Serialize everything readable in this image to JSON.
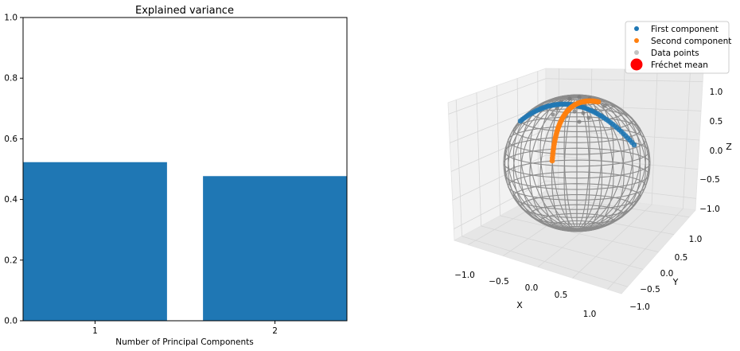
{
  "chart_data": [
    {
      "type": "bar",
      "title": "Explained variance",
      "xlabel": "Number of Principal Components",
      "ylabel": "",
      "categories": [
        "1",
        "2"
      ],
      "values": [
        0.523,
        0.477
      ],
      "ylim": [
        0,
        1
      ],
      "yticks": [
        "0.0",
        "0.2",
        "0.4",
        "0.6",
        "0.8",
        "1.0"
      ],
      "grid": false,
      "color": "#1f77b4"
    },
    {
      "type": "scatter3d",
      "title": "",
      "xlabel": "X",
      "ylabel": "Y",
      "zlabel": "Z",
      "xticks": [
        "−1.0",
        "−0.5",
        "0.0",
        "0.5",
        "1.0"
      ],
      "yticks": [
        "−1.0",
        "−0.5",
        "0.0",
        "0.5",
        "1.0"
      ],
      "zticks": [
        "−1.0",
        "−0.5",
        "0.0",
        "0.5",
        "1.0"
      ],
      "xlim": [
        -1.2,
        1.2
      ],
      "ylim": [
        -1.2,
        1.2
      ],
      "zlim": [
        -1.2,
        1.2
      ],
      "surface": "unit sphere wireframe",
      "legend_position": "top-right",
      "series": [
        {
          "name": "First component",
          "color": "#1f77b4",
          "marker": "point"
        },
        {
          "name": "Second component",
          "color": "#ff7f0e",
          "marker": "point"
        },
        {
          "name": "Data points",
          "color": "#bdbdbd",
          "marker": "point"
        },
        {
          "name": "Fréchet mean",
          "color": "#ff0000",
          "marker": "large-point"
        }
      ]
    }
  ]
}
